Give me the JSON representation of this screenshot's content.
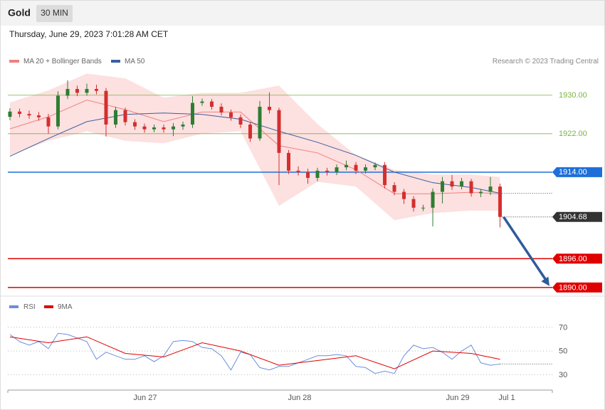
{
  "header": {
    "title": "Gold",
    "interval": "30 MIN",
    "timestamp": "Thursday, June 29, 2023 7:01:28 AM CET"
  },
  "chart_data": [
    {
      "type": "candlestick",
      "attribution": "Research © 2023 Trading Central",
      "xlim": [
        -0.22,
        56.44
      ],
      "ylim": [
        1888.8,
        1935.0
      ],
      "up_color": "#2e7d32",
      "down_color": "#d32f2f",
      "open": [
        1925.5,
        1926.6,
        1926.1,
        1925.8,
        1925.4,
        1923.5,
        1929.9,
        1931.3,
        1930.5,
        1931.3,
        1930.9,
        1923.9,
        1926.9,
        1924.4,
        1923.5,
        1922.9,
        1923.3,
        1922.9,
        1923.5,
        1923.9,
        1928.4,
        1928.7,
        1927.6,
        1926.4,
        1925.4,
        1923.9,
        1921.0,
        1927.6,
        1926.9,
        1918.0,
        1914.3,
        1914.0,
        1912.8,
        1914.3,
        1914.0,
        1915.0,
        1915.5,
        1914.3,
        1915.0,
        1915.5,
        1911.3,
        1909.9,
        1908.4,
        1906.6,
        1906.6,
        1909.9,
        1912.1,
        1911.0,
        1912.1,
        1909.6,
        1909.9,
        1911.0
      ],
      "high": [
        1927.3,
        1927.2,
        1926.8,
        1926.5,
        1926.1,
        1930.8,
        1933.1,
        1932.0,
        1932.4,
        1932.2,
        1931.5,
        1927.6,
        1927.4,
        1925.0,
        1924.1,
        1923.9,
        1923.9,
        1924.2,
        1924.5,
        1929.8,
        1929.3,
        1929.2,
        1928.3,
        1927.0,
        1926.0,
        1924.4,
        1928.8,
        1930.6,
        1927.4,
        1918.6,
        1915.2,
        1914.7,
        1914.9,
        1914.9,
        1915.6,
        1916.4,
        1916.1,
        1915.6,
        1916.0,
        1916.1,
        1911.9,
        1910.5,
        1909.0,
        1907.2,
        1910.6,
        1913.0,
        1913.4,
        1912.8,
        1912.6,
        1910.5,
        1913.0,
        1911.6
      ],
      "low": [
        1924.8,
        1925.4,
        1925.1,
        1924.7,
        1922.0,
        1922.9,
        1929.2,
        1929.8,
        1929.9,
        1930.2,
        1921.4,
        1923.2,
        1923.7,
        1922.8,
        1922.2,
        1922.3,
        1922.2,
        1921.5,
        1922.8,
        1923.2,
        1927.8,
        1927.0,
        1925.8,
        1924.7,
        1923.2,
        1920.3,
        1920.5,
        1926.2,
        1911.3,
        1913.6,
        1913.3,
        1911.6,
        1912.1,
        1913.3,
        1913.4,
        1914.4,
        1913.6,
        1913.7,
        1914.4,
        1910.6,
        1909.2,
        1907.4,
        1905.8,
        1905.9,
        1902.7,
        1907.5,
        1910.3,
        1910.4,
        1908.9,
        1908.8,
        1909.2,
        1902.5
      ],
      "close": [
        1926.6,
        1926.1,
        1925.8,
        1925.4,
        1923.5,
        1929.9,
        1931.3,
        1930.5,
        1931.3,
        1930.9,
        1923.9,
        1926.9,
        1924.4,
        1923.5,
        1922.9,
        1923.3,
        1922.9,
        1923.5,
        1923.9,
        1928.4,
        1928.7,
        1927.6,
        1926.4,
        1925.4,
        1923.9,
        1921.0,
        1927.6,
        1926.9,
        1918.0,
        1914.3,
        1914.0,
        1912.8,
        1914.3,
        1914.0,
        1915.0,
        1915.5,
        1914.3,
        1915.0,
        1915.5,
        1911.3,
        1909.9,
        1908.4,
        1906.6,
        1906.6,
        1909.9,
        1912.1,
        1911.0,
        1912.1,
        1909.6,
        1909.9,
        1911.0,
        1904.68
      ],
      "series": [
        {
          "name": "MA 20 + Bollinger Bands",
          "color": "#f08080",
          "band_color": "#fde0e0",
          "x": [
            0,
            4,
            8,
            12,
            16,
            20,
            24,
            28,
            32,
            36,
            40,
            44,
            48,
            51
          ],
          "values": [
            1923.0,
            1925.5,
            1929.0,
            1927.0,
            1924.5,
            1926.5,
            1926.5,
            1919.5,
            1918.0,
            1914.5,
            1909.5,
            1909.5,
            1909.8,
            1909.5
          ],
          "upper": [
            1928.5,
            1931.0,
            1934.5,
            1933.5,
            1929.5,
            1930.5,
            1930.5,
            1932.0,
            1924.0,
            1917.5,
            1914.5,
            1913.5,
            1913.5,
            1913.0
          ],
          "lower": [
            1917.5,
            1920.5,
            1922.5,
            1920.5,
            1920.0,
            1922.0,
            1922.5,
            1907.0,
            1912.0,
            1911.0,
            1904.0,
            1905.5,
            1906.0,
            1906.0
          ]
        },
        {
          "name": "MA 50",
          "color": "#3a5f9e",
          "x": [
            0,
            4,
            8,
            12,
            16,
            20,
            24,
            28,
            32,
            36,
            40,
            44,
            48,
            51
          ],
          "values": [
            1917.3,
            1921.0,
            1924.5,
            1926.0,
            1926.3,
            1926.0,
            1925.0,
            1922.5,
            1920.2,
            1917.5,
            1914.0,
            1911.8,
            1910.8,
            1909.6
          ]
        }
      ],
      "levels": [
        {
          "value": 1930,
          "label": "1930.00",
          "color": "#7cb342",
          "boxed": false
        },
        {
          "value": 1922,
          "label": "1922.00",
          "color": "#7cb342",
          "boxed": false
        },
        {
          "value": 1914,
          "label": "1914.00",
          "color": "#1e6fd9",
          "boxed": true
        },
        {
          "value": 1896,
          "label": "1896.00",
          "color": "#e00000",
          "boxed": true
        },
        {
          "value": 1890,
          "label": "1890.00",
          "color": "#e00000",
          "boxed": true
        }
      ],
      "last_price": {
        "value": 1904.68,
        "label": "1904.68",
        "color": "#333333"
      },
      "arrow_color": "#2f5b9c"
    },
    {
      "type": "line",
      "xlim": [
        -0.22,
        56.44
      ],
      "ylim": [
        20,
        82
      ],
      "yticks": [
        30,
        50,
        70
      ],
      "grid": true,
      "xticks": [
        {
          "value": 14.07,
          "label": "Jun 27"
        },
        {
          "value": 30.15,
          "label": "Jun 28"
        },
        {
          "value": 46.6,
          "label": "Jun 29"
        },
        {
          "value": 51.7,
          "label": "Jul 1"
        }
      ],
      "series": [
        {
          "name": "RSI",
          "color": "#6a8fdc",
          "values": [
            64,
            58,
            55,
            58,
            52,
            65,
            64,
            61,
            58,
            43,
            49,
            46,
            43,
            43,
            46,
            41,
            46,
            58,
            59,
            58,
            53,
            52,
            46,
            34,
            49,
            47,
            36,
            34,
            37,
            37,
            40,
            43,
            46,
            46,
            47,
            46,
            37,
            36,
            31,
            33,
            31,
            46,
            55,
            52,
            53,
            49,
            43,
            50,
            55,
            40,
            38,
            39
          ]
        },
        {
          "name": "9MA",
          "color": "#e00000",
          "x": [
            0,
            4,
            8,
            12,
            16,
            20,
            24,
            28,
            32,
            36,
            40,
            44,
            48,
            51
          ],
          "values": [
            62,
            57,
            62,
            48,
            45,
            57,
            50,
            38,
            42,
            46,
            35,
            50,
            48,
            43
          ]
        }
      ]
    }
  ]
}
